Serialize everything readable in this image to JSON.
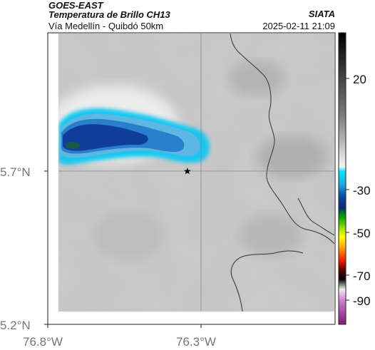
{
  "header": {
    "title": "GOES-EAST",
    "subtitle": "Temperatura de Brillo CH13",
    "location": "Vía Medellín - Quibdó 50km",
    "organization": "SIATA",
    "timestamp": "2025-02-11 21:09"
  },
  "map": {
    "lat_ticks": [
      {
        "label": "5.7°N",
        "value": 5.7
      },
      {
        "label": "5.2°N",
        "value": 5.2
      }
    ],
    "lon_ticks": [
      {
        "label": "76.8°W",
        "value": -76.8
      },
      {
        "label": "76.3°W",
        "value": -76.3
      }
    ],
    "marker": {
      "icon": "star-icon"
    }
  },
  "colorbar": {
    "ticks": [
      {
        "label": "20",
        "value": 20
      },
      {
        "label": "-30",
        "value": -30
      },
      {
        "label": "-50",
        "value": -50
      },
      {
        "label": "-70",
        "value": -70
      },
      {
        "label": "-90",
        "value": -90
      }
    ]
  }
}
